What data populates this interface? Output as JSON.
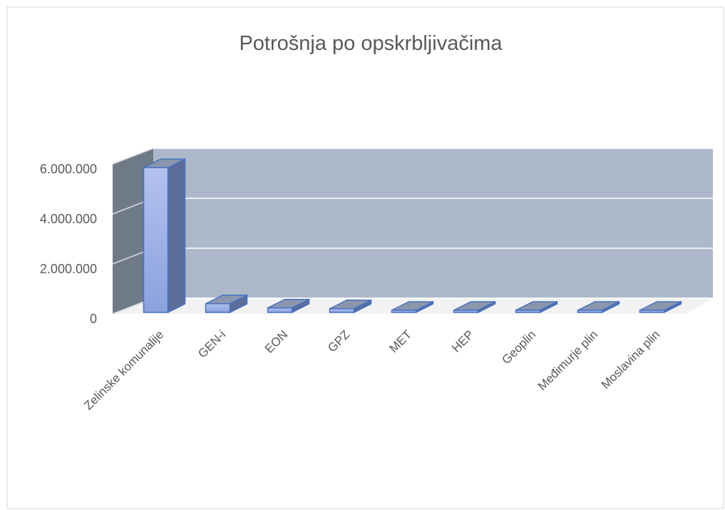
{
  "chart_data": {
    "type": "bar3d",
    "title": "Potrošnja po opskrbljivačima",
    "categories": [
      "Zelinske komunalije",
      "GEN-i",
      "EON",
      "GPZ",
      "MET",
      "HEP",
      "Geoplin",
      "Međimurje plin",
      "Moslavina plin"
    ],
    "values": [
      5800000,
      350000,
      180000,
      150000,
      60000,
      40000,
      30000,
      20000,
      15000
    ],
    "color": "#9aaee6",
    "ylim": [
      0,
      6000000
    ],
    "yticks": [
      0,
      {
        "value": 2000000,
        "label": "2.000.000"
      },
      {
        "value": 4000000,
        "label": "4.000.000"
      },
      {
        "value": 6000000,
        "label": "6.000.000"
      }
    ],
    "grid": true
  }
}
